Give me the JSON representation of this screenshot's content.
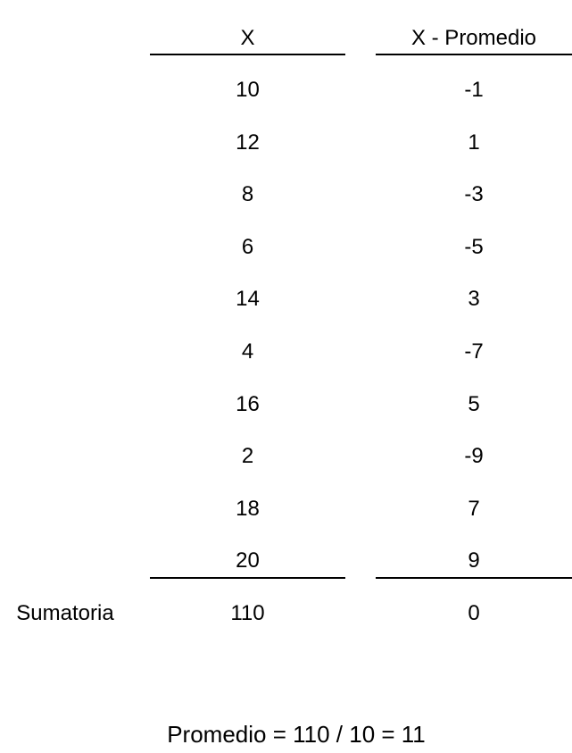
{
  "table": {
    "headers": {
      "x": "X",
      "deviation": "X - Promedio"
    },
    "rows": [
      {
        "x": "10",
        "deviation": "-1"
      },
      {
        "x": "12",
        "deviation": "1"
      },
      {
        "x": "8",
        "deviation": "-3"
      },
      {
        "x": "6",
        "deviation": "-5"
      },
      {
        "x": "14",
        "deviation": "3"
      },
      {
        "x": "4",
        "deviation": "-7"
      },
      {
        "x": "16",
        "deviation": "5"
      },
      {
        "x": "2",
        "deviation": "-9"
      },
      {
        "x": "18",
        "deviation": "7"
      },
      {
        "x": "20",
        "deviation": "9"
      }
    ],
    "totals": {
      "label": "Sumatoria",
      "x": "110",
      "deviation": "0"
    }
  },
  "footer": {
    "formula": "Promedio = 110 / 10 = 11"
  }
}
